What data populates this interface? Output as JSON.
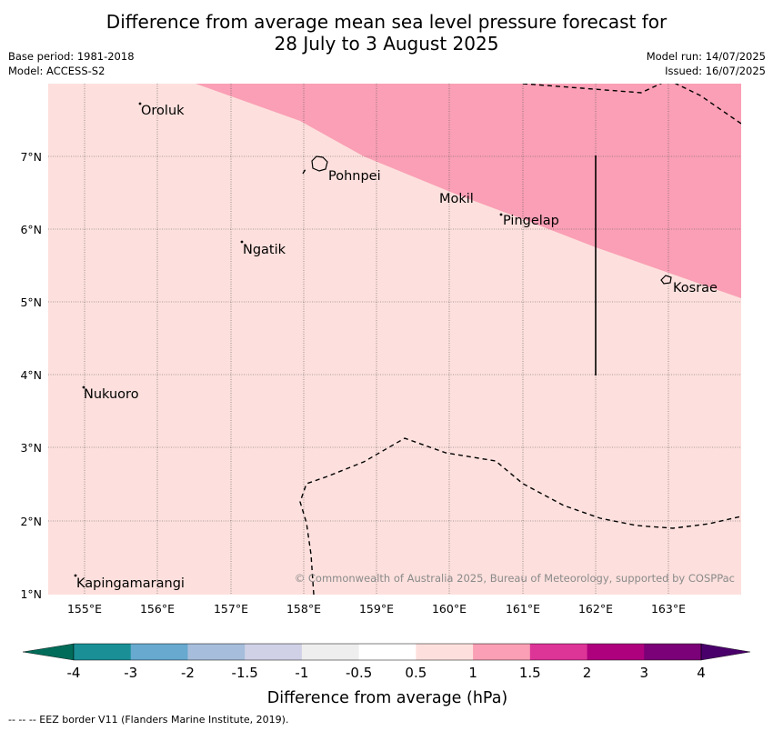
{
  "header": {
    "title_line1": "Difference from average mean sea level pressure forecast for",
    "title_line2": "28 July to 3 August 2025",
    "base_period": "Base period: 1981-2018",
    "model": "Model: ACCESS-S2",
    "model_run": "Model run: 14/07/2025",
    "issued": "Issued: 16/07/2025"
  },
  "map": {
    "lon_ticks": [
      "155°E",
      "156°E",
      "157°E",
      "158°E",
      "159°E",
      "160°E",
      "161°E",
      "162°E",
      "163°E"
    ],
    "lat_ticks": [
      "7°N",
      "6°N",
      "5°N",
      "4°N",
      "3°N",
      "2°N",
      "1°N"
    ],
    "places": [
      "Oroluk",
      "Pohnpei",
      "Mokil",
      "Pingelap",
      "Ngatik",
      "Kosrae",
      "Nukuoro",
      "Kapingamarangi"
    ],
    "copyright": "© Commonwealth of Australia 2025, Bureau of Meteorology, supported by COSPPac",
    "background_class_color": "#fde0dd",
    "upper_class_color": "#fa9fb5"
  },
  "colorbar": {
    "labels": [
      "-4",
      "-3",
      "-2",
      "-1.5",
      "-1",
      "-0.5",
      "0.5",
      "1",
      "1.5",
      "2",
      "3",
      "4"
    ],
    "colors": [
      "#1a9096",
      "#67a9cf",
      "#a6bddb",
      "#d0d1e6",
      "#eeeeee",
      "#ffffff",
      "#fde0dd",
      "#fa9fb5",
      "#dd3497",
      "#ae017e",
      "#7a0177"
    ],
    "under_color": "#016c59",
    "over_color": "#49006a",
    "label": "Difference from average (hPa)"
  },
  "footer": {
    "legend": "--  --  -- EEZ border V11 (Flanders Marine Institute, 2019)."
  }
}
